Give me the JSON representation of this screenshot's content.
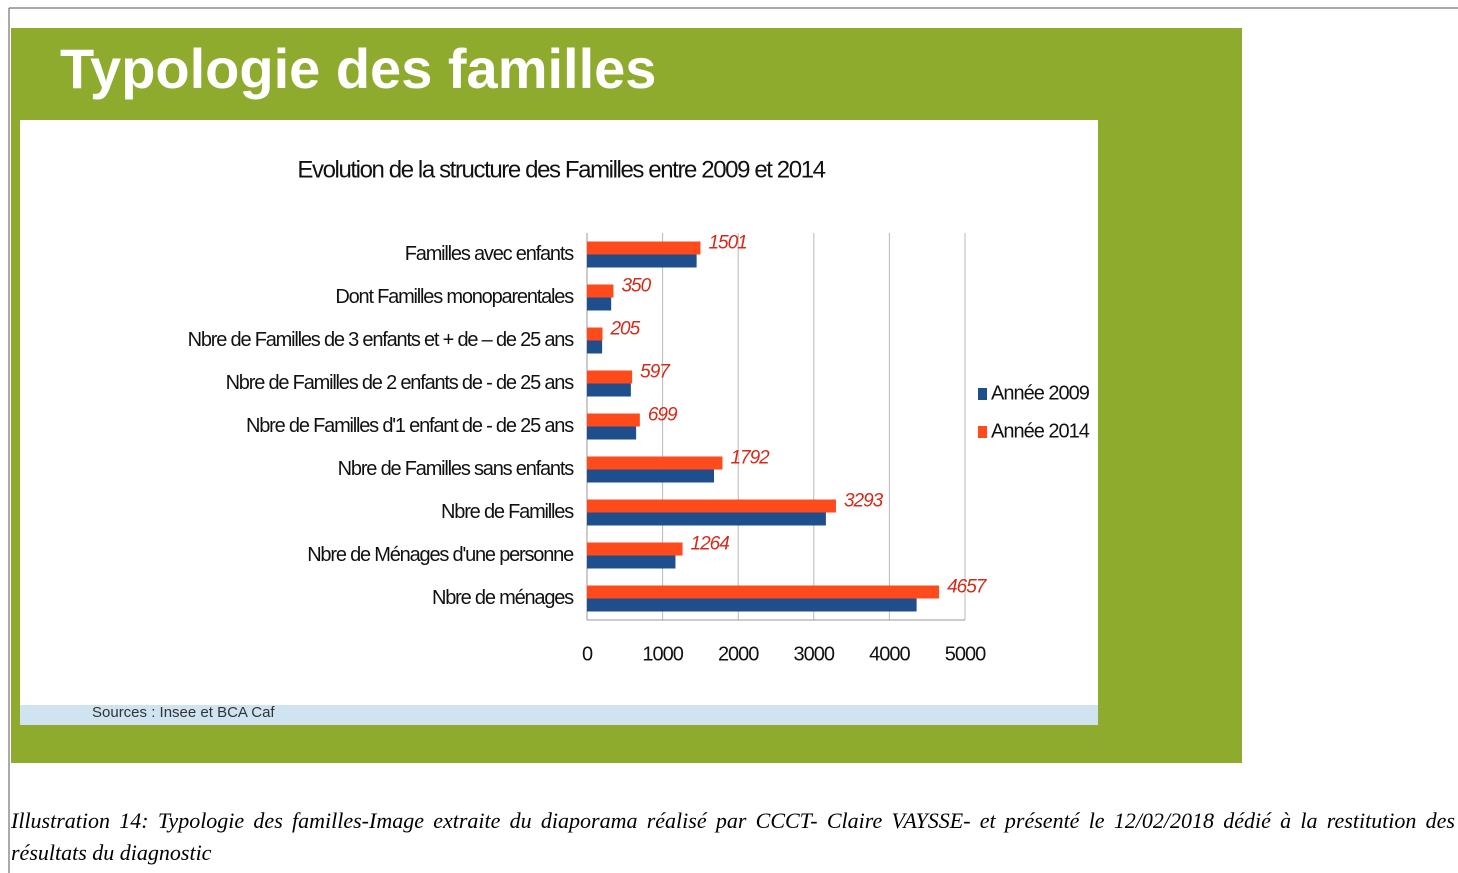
{
  "slide_title": "Typologie des familles",
  "source": "Sources : Insee et BCA Caf",
  "caption": "Illustration 14: Typologie des familles-Image extraite du diaporama réalisé par CCCT- Claire VAYSSE- et présenté le 12/02/2018 dédié à la restitution des résultats du diagnostic",
  "chart_data": {
    "type": "hbar",
    "title": "Evolution de la structure des Familles entre 2009 et 2014",
    "categories": [
      "Familles avec enfants",
      "Dont Familles monoparentales",
      "Nbre de Familles de 3 enfants et + de – de 25 ans",
      "Nbre de Familles de 2 enfants de - de 25 ans",
      "Nbre de Familles d'1 enfant de - de 25 ans",
      "Nbre de Familles sans enfants",
      "Nbre de Familles",
      "Nbre de Ménages d'une personne",
      "Nbre de ménages"
    ],
    "series": [
      {
        "name": "Année 2009",
        "color": "#1f4e8c",
        "values": [
          1450,
          320,
          200,
          580,
          650,
          1680,
          3160,
          1170,
          4360
        ]
      },
      {
        "name": "Année 2014",
        "color": "#ff4a1c",
        "values": [
          1501,
          350,
          205,
          597,
          699,
          1792,
          3293,
          1264,
          4657
        ]
      }
    ],
    "xlim": [
      0,
      5000
    ],
    "xticks": [
      0,
      1000,
      2000,
      3000,
      4000,
      5000
    ],
    "grid": true,
    "legend": "right",
    "data_labels_series": 1
  }
}
